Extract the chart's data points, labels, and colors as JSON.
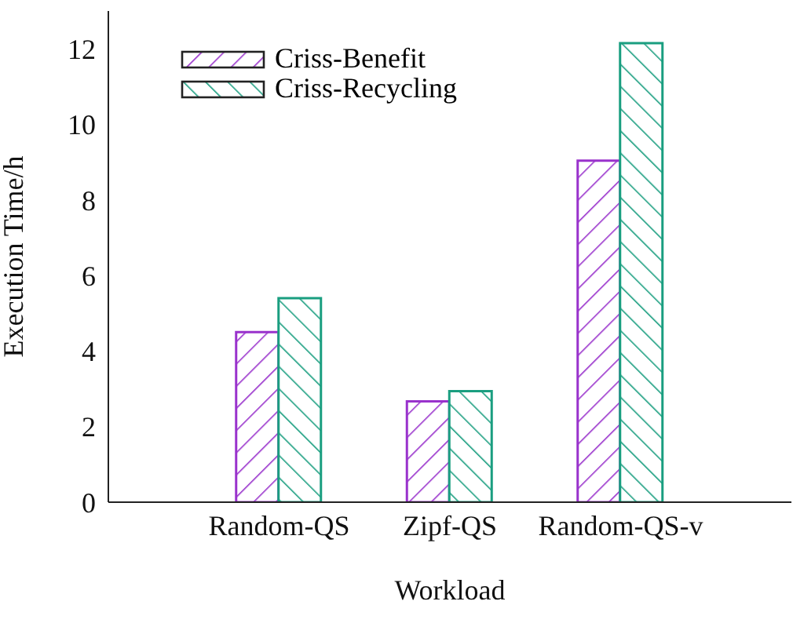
{
  "chart_data": {
    "type": "bar",
    "xlabel": "Workload",
    "ylabel": "Execution Time/h",
    "categories": [
      "Random-QS",
      "Zipf-QS",
      "Random-QS-v"
    ],
    "series": [
      {
        "name": "Criss-Benefit",
        "color": "#9932cc",
        "values": [
          4.5,
          2.67,
          9.04
        ]
      },
      {
        "name": "Criss-Recycling",
        "color": "#1a9e80",
        "values": [
          5.4,
          2.94,
          12.15
        ]
      }
    ],
    "ylim": [
      0,
      13
    ],
    "yticks": [
      0,
      2,
      4,
      6,
      8,
      10,
      12
    ],
    "grid": false,
    "legend": "top left"
  }
}
